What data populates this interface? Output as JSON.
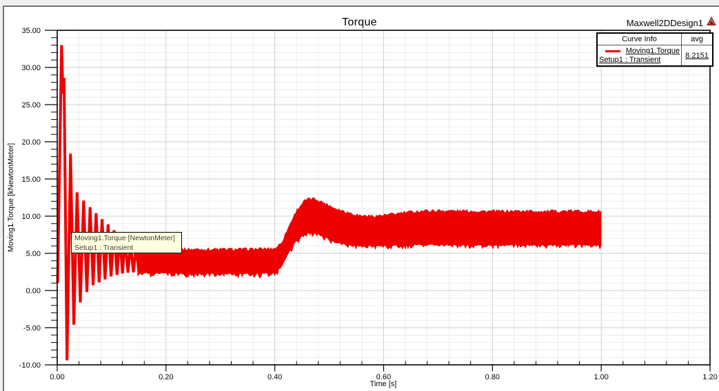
{
  "window": {
    "background": "#f0f0f0",
    "panel_border": "#747474"
  },
  "header": {
    "design_name": "Maxwell2DDesign1",
    "logo_icon": "ansys-triangle-logo",
    "logo_color": "#9e2b25"
  },
  "legend": {
    "header_curve": "Curve Info",
    "header_avg": "avg",
    "curve_label": "Moving1.Torque",
    "setup_label": "Setup1 : Transient",
    "avg_value": "8.2151",
    "swatch_color": "#ee0000"
  },
  "tooltip": {
    "line1": "Moving1.Torque [NewtonMeter]",
    "line2": "Setup1 : Transient",
    "background": "#ffffe1"
  },
  "chart_data": {
    "type": "line",
    "title": "Torque",
    "xlabel": "Time [s]",
    "ylabel": "Moving1.Torque [kNewtonMeter]",
    "xlim": [
      0,
      1.2
    ],
    "ylim": [
      -10,
      35
    ],
    "x_major_step": 0.2,
    "x_minor_step": 0.04,
    "y_major_step": 5,
    "y_minor_step": 1,
    "x_tick_labels": [
      "0.00",
      "0.20",
      "0.40",
      "0.60",
      "0.80",
      "1.00",
      "1.20"
    ],
    "y_tick_labels": [
      "-10.00",
      "-5.00",
      "0.00",
      "5.00",
      "10.00",
      "15.00",
      "20.00",
      "25.00",
      "30.00",
      "35.00"
    ],
    "grid": true,
    "grid_minor_color": "#ebebeb",
    "grid_major_color": "#cccccc",
    "legend_position": "top-right",
    "series": [
      {
        "name": "Moving1.Torque",
        "setup": "Setup1 : Transient",
        "avg": 8.2151,
        "color": "#ee0000",
        "description": "Startup transient: large decaying torque oscillation (peak ~33 kNm, min ~-9.4 kNm) settling to a ripple band ~2.5-5.5 kNm until t=0.4 s, then load step raises band to hump ~8-12.2 kNm near t=0.46 s, settling to steady ripple band ~6.3-10.5 kNm through t=1.0 s",
        "transient_points": [
          [
            0.0008,
            1.0
          ],
          [
            0.008,
            33.0
          ],
          [
            0.0105,
            26.5
          ],
          [
            0.0125,
            28.6
          ],
          [
            0.018,
            -9.4
          ],
          [
            0.0245,
            18.4
          ],
          [
            0.0305,
            -4.6
          ],
          [
            0.0365,
            13.2
          ],
          [
            0.0425,
            -1.6
          ],
          [
            0.0485,
            12.1
          ],
          [
            0.0545,
            -0.2
          ],
          [
            0.0605,
            11.2
          ],
          [
            0.066,
            0.7
          ],
          [
            0.0715,
            10.4
          ],
          [
            0.077,
            1.1
          ],
          [
            0.0825,
            9.6
          ],
          [
            0.088,
            1.5
          ],
          [
            0.0935,
            8.9
          ],
          [
            0.099,
            1.9
          ],
          [
            0.1045,
            8.1
          ],
          [
            0.11,
            2.1
          ],
          [
            0.115,
            7.4
          ],
          [
            0.12,
            2.3
          ],
          [
            0.125,
            6.8
          ],
          [
            0.13,
            2.4
          ],
          [
            0.135,
            6.3
          ],
          [
            0.14,
            2.45
          ],
          [
            0.145,
            5.9
          ],
          [
            0.15,
            2.5
          ]
        ],
        "band_envelope": {
          "t": [
            0.148,
            0.16,
            0.2,
            0.25,
            0.3,
            0.35,
            0.4,
            0.412,
            0.425,
            0.44,
            0.455,
            0.465,
            0.475,
            0.49,
            0.51,
            0.53,
            0.555,
            0.58,
            0.61,
            0.64,
            0.67,
            0.7,
            0.75,
            0.8,
            0.85,
            0.9,
            0.95,
            1.0
          ],
          "top": [
            5.8,
            5.5,
            5.4,
            5.35,
            5.35,
            5.35,
            5.45,
            6.2,
            8.3,
            10.6,
            11.9,
            12.15,
            12.1,
            11.6,
            10.9,
            10.4,
            9.9,
            9.8,
            10.0,
            10.3,
            10.5,
            10.55,
            10.5,
            10.45,
            10.5,
            10.45,
            10.5,
            10.45
          ],
          "bottom": [
            2.6,
            2.5,
            2.45,
            2.4,
            2.4,
            2.4,
            2.5,
            3.3,
            5.2,
            6.9,
            7.7,
            7.9,
            7.85,
            7.4,
            6.7,
            6.4,
            6.2,
            6.15,
            6.2,
            6.25,
            6.3,
            6.3,
            6.25,
            6.25,
            6.3,
            6.25,
            6.3,
            6.25
          ]
        }
      }
    ]
  }
}
